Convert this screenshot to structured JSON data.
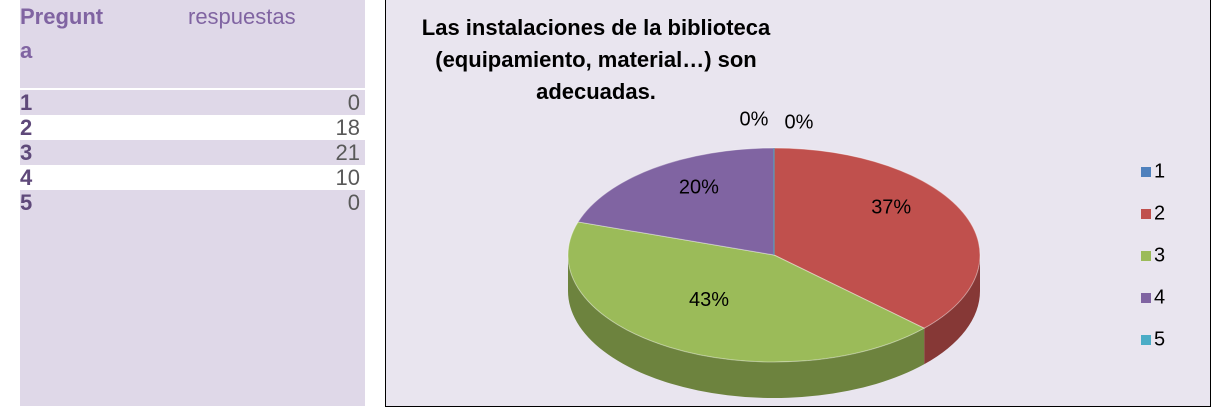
{
  "table": {
    "header": [
      "Pregunta",
      "respuestas"
    ],
    "rows": [
      [
        1,
        0
      ],
      [
        2,
        18
      ],
      [
        3,
        21
      ],
      [
        4,
        10
      ],
      [
        5,
        0
      ]
    ]
  },
  "chart_data": {
    "type": "pie",
    "title": "Las instalaciones de la biblioteca (equipamiento, material…) son adecuadas.",
    "categories": [
      "1",
      "2",
      "3",
      "4",
      "5"
    ],
    "values": [
      0,
      37,
      43,
      20,
      0
    ],
    "value_labels": [
      "0%",
      "37%",
      "43%",
      "20%",
      "0%"
    ],
    "colors": [
      "#4f81bd",
      "#c0504d",
      "#9bbb59",
      "#8064a2",
      "#4bacc6"
    ],
    "legend": "right"
  }
}
